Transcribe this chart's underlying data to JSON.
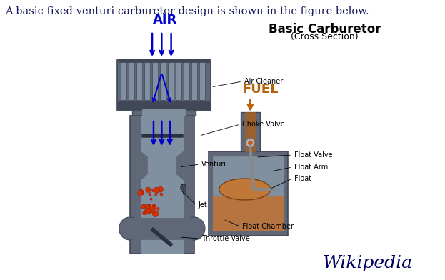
{
  "title_text": "A basic fixed-venturi carburetor design is shown in the figure below.",
  "title_color": "#1a1a5f",
  "title_fontsize": 10.5,
  "heading1": "Basic Carburetor",
  "heading2": "(Cross Section)",
  "heading_fontsize": 12,
  "air_label": "AIR",
  "fuel_label": "FUEL",
  "air_color": "#0000cc",
  "fuel_color": "#b8620a",
  "bg_color": "#ffffff",
  "body_color": "#606878",
  "body_dark": "#404858",
  "body_light": "#8090a0",
  "float_color": "#c07838",
  "label_fontsize": 7,
  "wikipedia_text": "Wikipedia",
  "wikipedia_color": "#000060",
  "wikipedia_fontsize": 18
}
